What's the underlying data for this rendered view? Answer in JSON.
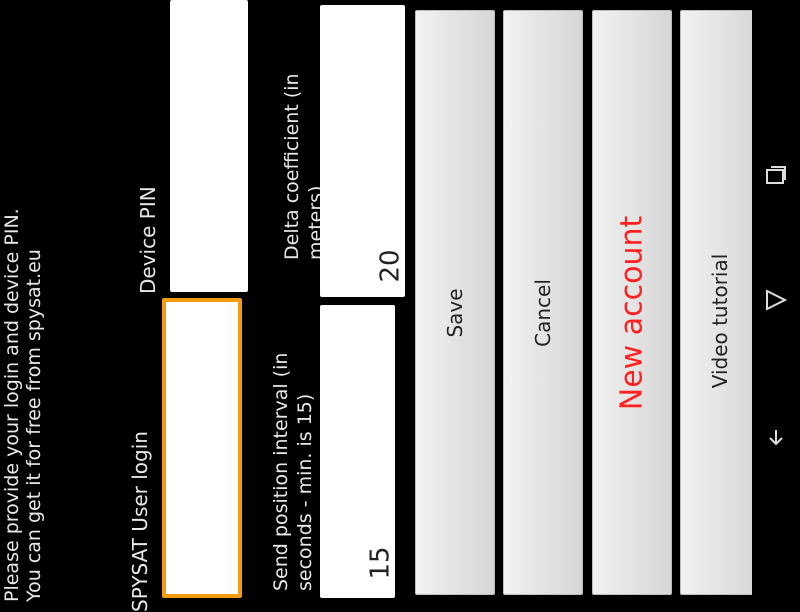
{
  "intro": {
    "line1": "Please provide your login and device PIN.",
    "line2": "You can get it for free from spysat.eu"
  },
  "login": {
    "label": "SPYSAT User login",
    "value": ""
  },
  "pin": {
    "label": "Device PIN",
    "value": ""
  },
  "interval": {
    "label_line1": "Send position interval (in",
    "label_line2": "seconds - min. is 15)",
    "value": "15"
  },
  "delta": {
    "label_line1": "Delta coefficient (in",
    "label_line2": "meters)",
    "value": "20"
  },
  "buttons": {
    "save": "Save",
    "cancel": "Cancel",
    "new_account": "New account",
    "video_tutorial": "Video tutorial"
  },
  "colors": {
    "accent_focus": "#f39c12",
    "new_account_text": "#ff2020"
  },
  "navbar": {
    "recent": "recent-apps-icon",
    "home": "home-icon",
    "back": "back-icon",
    "menu": "menu-icon"
  }
}
